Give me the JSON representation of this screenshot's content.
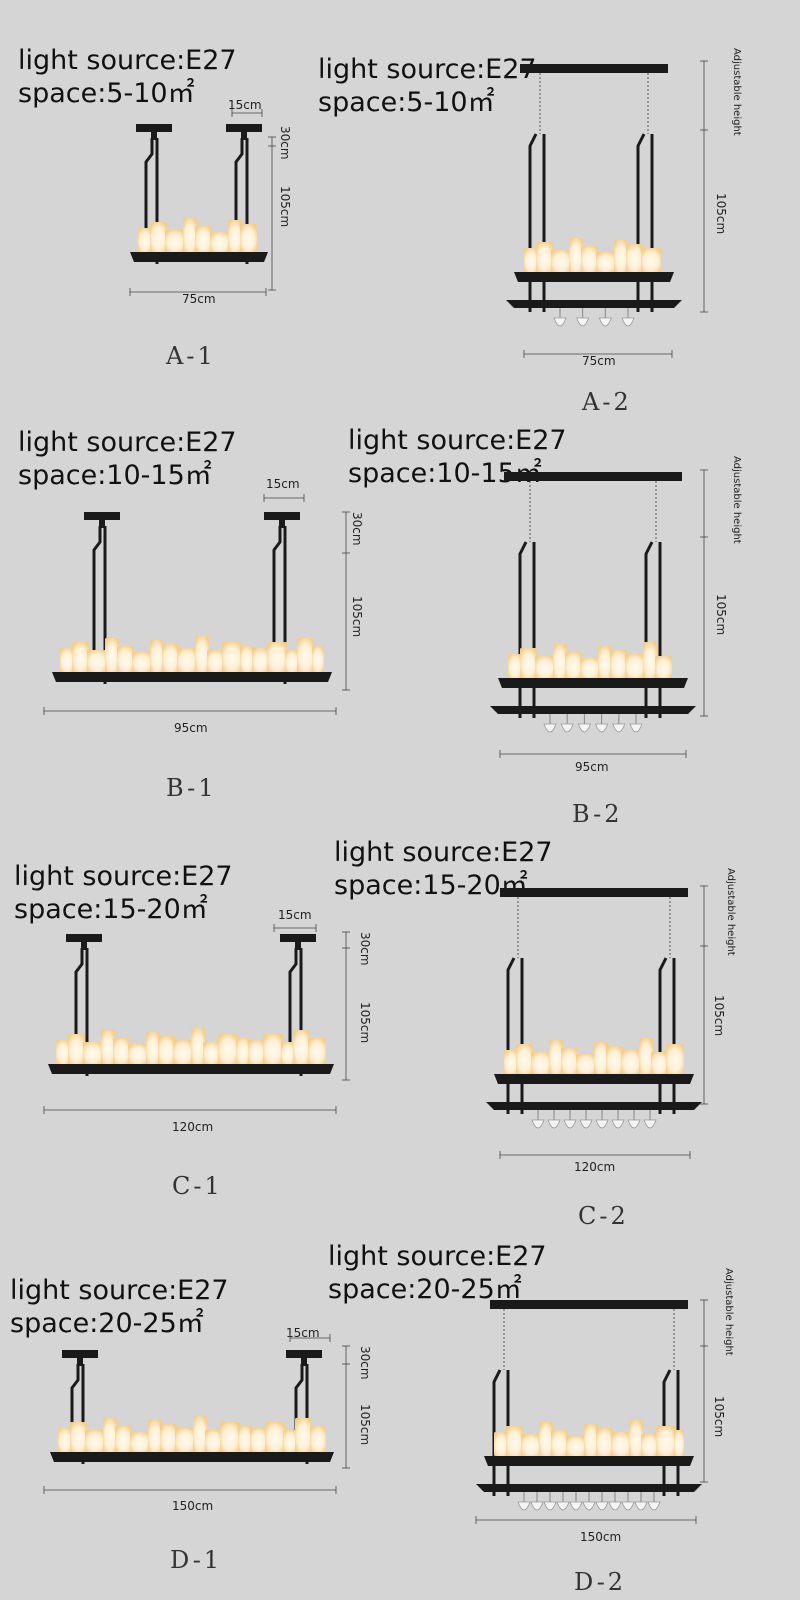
{
  "spec_label": "light source:E27",
  "models": [
    {
      "code": "A-1",
      "space": "space:5-10㎡",
      "width": "75cm",
      "canopy": "15cm",
      "top": "30cm",
      "height": "105cm"
    },
    {
      "code": "A-2",
      "space": "space:5-10㎡",
      "width": "75cm",
      "height": "105cm",
      "adjustable": "Adjustable height"
    },
    {
      "code": "B-1",
      "space": "space:10-15㎡",
      "width": "95cm",
      "canopy": "15cm",
      "top": "30cm",
      "height": "105cm"
    },
    {
      "code": "B-2",
      "space": "space:10-15㎡",
      "width": "95cm",
      "height": "105cm",
      "adjustable": "Adjustable height"
    },
    {
      "code": "C-1",
      "space": "space:15-20㎡",
      "width": "120cm",
      "canopy": "15cm",
      "top": "30cm",
      "height": "105cm"
    },
    {
      "code": "C-2",
      "space": "space:15-20㎡",
      "width": "120cm",
      "height": "105cm",
      "adjustable": "Adjustable height"
    },
    {
      "code": "D-1",
      "space": "space:20-25㎡",
      "width": "150cm",
      "canopy": "15cm",
      "top": "30cm",
      "height": "105cm"
    },
    {
      "code": "D-2",
      "space": "space:20-25㎡",
      "width": "150cm",
      "height": "105cm",
      "adjustable": "Adjustable height"
    }
  ],
  "colors": {
    "background": "#d5d5d5",
    "metal": "#1a1a1a",
    "candle": "#fdf6e8",
    "glow": "#f6cf8a",
    "dim_line": "#444444"
  }
}
